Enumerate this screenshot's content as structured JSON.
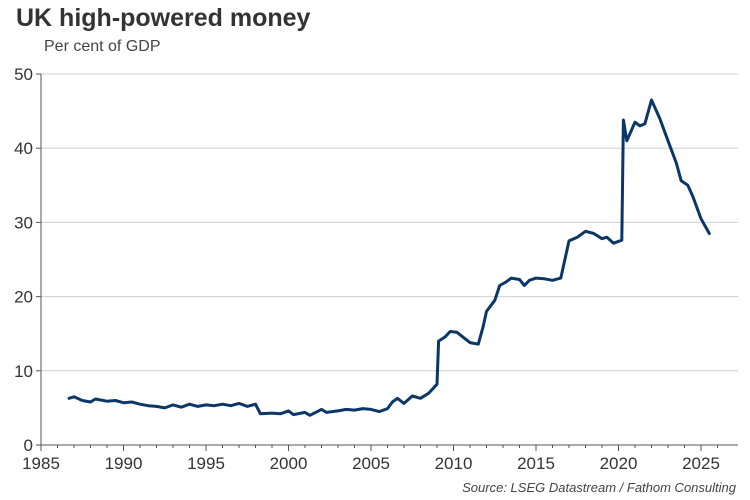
{
  "chart_data": {
    "type": "line",
    "title": "UK high-powered money",
    "subtitle": "Per cent of GDP",
    "source": "Source: LSEG Datastream / Fathom Consulting",
    "xlabel": "",
    "ylabel": "",
    "xlim": [
      1985,
      2026.5
    ],
    "ylim": [
      0,
      50
    ],
    "xticks": [
      "1985",
      "1990",
      "1995",
      "2000",
      "2005",
      "2010",
      "2015",
      "2020",
      "2025"
    ],
    "yticks": [
      "0",
      "10",
      "20",
      "30",
      "40",
      "50"
    ],
    "grid": true,
    "line_color": "#0b3668",
    "series": [
      {
        "name": "UK high-powered money",
        "x": [
          1986.7,
          1987,
          1987.5,
          1988,
          1988.3,
          1989,
          1989.5,
          1990,
          1990.5,
          1991,
          1991.5,
          1992,
          1992.5,
          1993,
          1993.5,
          1994,
          1994.5,
          1995,
          1995.5,
          1996,
          1996.5,
          1997,
          1997.5,
          1998,
          1998.3,
          1999,
          1999.5,
          2000,
          2000.3,
          2001,
          2001.3,
          2002,
          2002.3,
          2003,
          2003.5,
          2004,
          2004.5,
          2005,
          2005.5,
          2006,
          2006.3,
          2006.6,
          2007,
          2007.5,
          2008,
          2008.5,
          2009,
          2009.1,
          2009.5,
          2009.8,
          2010.2,
          2010.6,
          2011,
          2011.5,
          2011.8,
          2012,
          2012.5,
          2012.8,
          2013.2,
          2013.5,
          2014,
          2014.3,
          2014.6,
          2015,
          2015.5,
          2016,
          2016.5,
          2017,
          2017.5,
          2018,
          2018.5,
          2019,
          2019.3,
          2019.7,
          2020.2,
          2020.3,
          2020.5,
          2021,
          2021.3,
          2021.6,
          2022,
          2022.5,
          2023,
          2023.5,
          2023.8,
          2024.2,
          2024.5,
          2025,
          2025.5
        ],
        "values": [
          6.3,
          6.5,
          6.0,
          5.8,
          6.2,
          5.9,
          6.0,
          5.7,
          5.8,
          5.5,
          5.3,
          5.2,
          5.0,
          5.4,
          5.1,
          5.5,
          5.2,
          5.4,
          5.3,
          5.5,
          5.3,
          5.6,
          5.2,
          5.5,
          4.2,
          4.3,
          4.2,
          4.6,
          4.1,
          4.4,
          4.0,
          4.8,
          4.4,
          4.6,
          4.8,
          4.7,
          4.9,
          4.8,
          4.5,
          4.9,
          5.8,
          6.3,
          5.6,
          6.6,
          6.3,
          7.0,
          8.2,
          14.0,
          14.6,
          15.3,
          15.2,
          14.5,
          13.8,
          13.6,
          16.0,
          18.0,
          19.5,
          21.5,
          22.0,
          22.5,
          22.3,
          21.5,
          22.2,
          22.5,
          22.4,
          22.2,
          22.5,
          27.5,
          28.0,
          28.8,
          28.5,
          27.8,
          28.0,
          27.2,
          27.6,
          43.8,
          41.0,
          43.5,
          43.0,
          43.3,
          46.5,
          44.0,
          41.0,
          38.0,
          35.6,
          35.0,
          33.5,
          30.5,
          28.5
        ]
      }
    ]
  }
}
